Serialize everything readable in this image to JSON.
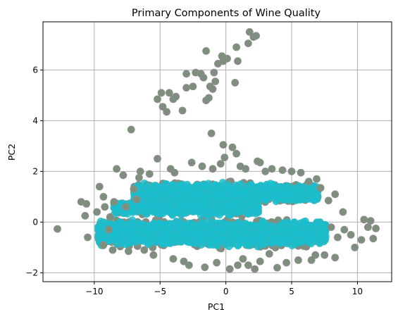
{
  "chart_data": {
    "type": "scatter",
    "title": "Primary Components of Wine Quality",
    "xlabel": "PC1",
    "ylabel": "PC2",
    "xlim": [
      -13.9,
      12.6
    ],
    "ylim": [
      -2.35,
      7.9
    ],
    "xticks": [
      -10,
      -5,
      0,
      5,
      10
    ],
    "yticks": [
      -2,
      0,
      2,
      4,
      6
    ],
    "xtick_labels": [
      "−10",
      "−5",
      "0",
      "5",
      "10"
    ],
    "ytick_labels": [
      "−2",
      "0",
      "2",
      "4",
      "6"
    ],
    "grid": true,
    "legend": "none",
    "colors": {
      "dense_core": "#17becf",
      "outlier": "#7f8f7e",
      "edge": "#8c8c8c"
    },
    "series": [
      {
        "color": "#7f8f7e",
        "points": [
          [
            -12.8,
            -0.27
          ],
          [
            -11.0,
            0.8
          ],
          [
            -10.6,
            0.72
          ],
          [
            -10.7,
            0.25
          ],
          [
            -10.5,
            -0.6
          ],
          [
            -9.8,
            0.4
          ],
          [
            -9.6,
            1.4
          ],
          [
            -9.3,
            1.0
          ],
          [
            -8.8,
            0.2
          ],
          [
            -8.5,
            0.8
          ],
          [
            -8.3,
            2.1
          ],
          [
            -7.8,
            1.85
          ],
          [
            -7.2,
            3.65
          ],
          [
            -7.0,
            1.3
          ],
          [
            -6.5,
            2.0
          ],
          [
            -5.2,
            4.85
          ],
          [
            -4.9,
            5.1
          ],
          [
            -4.8,
            4.55
          ],
          [
            -4.5,
            4.35
          ],
          [
            -4.3,
            5.1
          ],
          [
            -4.0,
            4.85
          ],
          [
            -3.8,
            4.95
          ],
          [
            -3.3,
            4.4
          ],
          [
            -3.0,
            5.85
          ],
          [
            -3.0,
            5.3
          ],
          [
            -2.5,
            5.35
          ],
          [
            -2.3,
            5.9
          ],
          [
            -1.9,
            5.85
          ],
          [
            -1.7,
            5.7
          ],
          [
            -1.5,
            6.75
          ],
          [
            -1.5,
            4.8
          ],
          [
            -1.3,
            4.9
          ],
          [
            -1.2,
            5.35
          ],
          [
            -1.0,
            5.25
          ],
          [
            -0.9,
            5.9
          ],
          [
            -0.8,
            5.55
          ],
          [
            -0.6,
            6.25
          ],
          [
            -0.3,
            6.55
          ],
          [
            -0.2,
            6.35
          ],
          [
            0.1,
            6.45
          ],
          [
            0.7,
            5.5
          ],
          [
            0.8,
            6.9
          ],
          [
            0.9,
            6.35
          ],
          [
            1.7,
            7.05
          ],
          [
            1.8,
            7.5
          ],
          [
            2.1,
            7.3
          ],
          [
            2.3,
            7.35
          ],
          [
            -1.1,
            3.5
          ],
          [
            -0.2,
            3.05
          ],
          [
            -0.1,
            2.55
          ],
          [
            0.5,
            2.95
          ],
          [
            0.8,
            2.7
          ],
          [
            1.1,
            2.2
          ],
          [
            1.5,
            2.1
          ],
          [
            2.4,
            2.4
          ],
          [
            3.0,
            2.0
          ],
          [
            3.5,
            2.1
          ],
          [
            4.3,
            2.05
          ],
          [
            5.0,
            2.0
          ],
          [
            5.7,
            1.95
          ],
          [
            -5.2,
            2.5
          ],
          [
            -4.2,
            2.1
          ],
          [
            -2.6,
            2.35
          ],
          [
            -1.8,
            2.2
          ],
          [
            -1.0,
            2.1
          ],
          [
            0.3,
            -1.85
          ],
          [
            -1.6,
            -1.78
          ],
          [
            -2.8,
            -1.7
          ],
          [
            -0.7,
            -1.6
          ],
          [
            0.9,
            -1.7
          ],
          [
            1.7,
            -1.7
          ],
          [
            2.2,
            -1.85
          ],
          [
            2.6,
            -1.55
          ],
          [
            3.9,
            -1.8
          ],
          [
            4.6,
            -1.6
          ],
          [
            5.5,
            -1.5
          ],
          [
            6.5,
            -1.5
          ],
          [
            7.5,
            -1.3
          ],
          [
            8.3,
            -1.4
          ],
          [
            -4.0,
            -1.45
          ],
          [
            -5.5,
            -1.3
          ],
          [
            -7.4,
            -1.15
          ],
          [
            -8.6,
            -1.1
          ],
          [
            -9.3,
            -0.9
          ],
          [
            8.0,
            -0.2
          ],
          [
            8.5,
            -0.6
          ],
          [
            9.0,
            -0.3
          ],
          [
            9.5,
            -0.5
          ],
          [
            9.8,
            -1.0
          ],
          [
            10.3,
            -0.7
          ],
          [
            10.5,
            0.1
          ],
          [
            10.8,
            -0.2
          ],
          [
            11.0,
            0.05
          ],
          [
            11.2,
            -0.65
          ],
          [
            11.4,
            -0.25
          ],
          [
            8.9,
            0.4
          ],
          [
            8.3,
            1.1
          ],
          [
            7.8,
            0.85
          ],
          [
            7.2,
            1.35
          ],
          [
            6.9,
            1.7
          ],
          [
            -6.6,
            1.75
          ],
          [
            -5.8,
            1.9
          ],
          [
            -3.9,
            1.95
          ],
          [
            -8.9,
            -0.3
          ],
          [
            -7.6,
            0.6
          ],
          [
            -6.2,
            -1.1
          ],
          [
            -3.2,
            -1.55
          ],
          [
            6.8,
            -1.3
          ],
          [
            -9.2,
            0.6
          ],
          [
            6.3,
            1.6
          ],
          [
            2.6,
            2.35
          ],
          [
            -0.4,
            2.3
          ],
          [
            1.3,
            -1.45
          ],
          [
            3.3,
            -1.25
          ],
          [
            -6.8,
            0.9
          ]
        ]
      }
    ],
    "dense_regions": [
      {
        "color": "#17becf",
        "x_range": [
          -9.7,
          7.6
        ],
        "y_center": -0.45,
        "y_spread": 0.55,
        "count": 2600
      },
      {
        "color": "#17becf",
        "x_range": [
          -7.0,
          7.0
        ],
        "y_center": 1.15,
        "y_spread": 0.42,
        "count": 1700
      },
      {
        "color": "#17becf",
        "x_range": [
          -8.5,
          2.5
        ],
        "y_center": 0.55,
        "y_spread": 0.35,
        "count": 500
      }
    ]
  }
}
